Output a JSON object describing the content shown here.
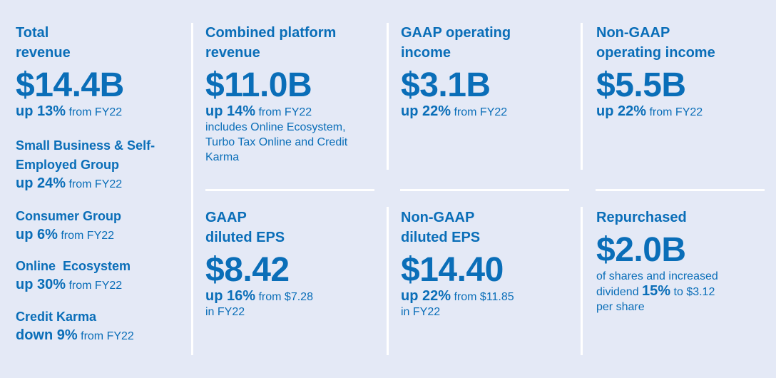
{
  "total_revenue": {
    "title_line1": "Total",
    "title_line2": "revenue",
    "value": "$14.4B",
    "change": "up 13%",
    "change_suffix": " from FY22"
  },
  "segments": [
    {
      "name_line1": "Small Business & Self-",
      "name_line2": "Employed Group",
      "change": "up 24%",
      "change_suffix": " from FY22"
    },
    {
      "name_line1": "Consumer Group",
      "name_line2": "",
      "change": "up 6%",
      "change_suffix": " from FY22"
    },
    {
      "name_line1": "Online  Ecosystem",
      "name_line2": "",
      "change": "up 30%",
      "change_suffix": " from FY22"
    },
    {
      "name_line1": "Credit Karma",
      "name_line2": "",
      "change": "down 9%",
      "change_suffix": " from FY22"
    }
  ],
  "combined_platform": {
    "title_line1": "Combined platform",
    "title_line2": "revenue",
    "value": "$11.0B",
    "change": "up 14%",
    "change_suffix": " from FY22",
    "note_line1": "includes Online Ecosystem,",
    "note_line2": "Turbo Tax Online and Credit",
    "note_line3": "Karma"
  },
  "gaap_operating_income": {
    "title_line1": "GAAP operating",
    "title_line2": "income",
    "value": "$3.1B",
    "change": "up 22%",
    "change_suffix": " from FY22"
  },
  "non_gaap_operating_income": {
    "title_line1": "Non-GAAP",
    "title_line2": "operating income",
    "value": "$5.5B",
    "change": "up 22%",
    "change_suffix": " from FY22"
  },
  "gaap_eps": {
    "title_line1": "GAAP",
    "title_line2": "diluted EPS",
    "value": "$8.42",
    "change": "up 16%",
    "change_suffix": " from $7.28",
    "change_line2": "in FY22"
  },
  "non_gaap_eps": {
    "title_line1": "Non-GAAP",
    "title_line2": "diluted EPS",
    "value": "$14.40",
    "change": "up 22%",
    "change_suffix": " from $11.85",
    "change_line2": "in FY22"
  },
  "repurchased": {
    "title": "Repurchased",
    "value": "$2.0B",
    "note_line1": "of shares and increased",
    "note_line2_prefix": "dividend ",
    "note_line2_bold": "15%",
    "note_line2_suffix": " to $3.12",
    "note_line3": "per share"
  },
  "colors": {
    "background": "#e4e9f6",
    "text": "#0a6eb8",
    "divider": "#ffffff"
  }
}
